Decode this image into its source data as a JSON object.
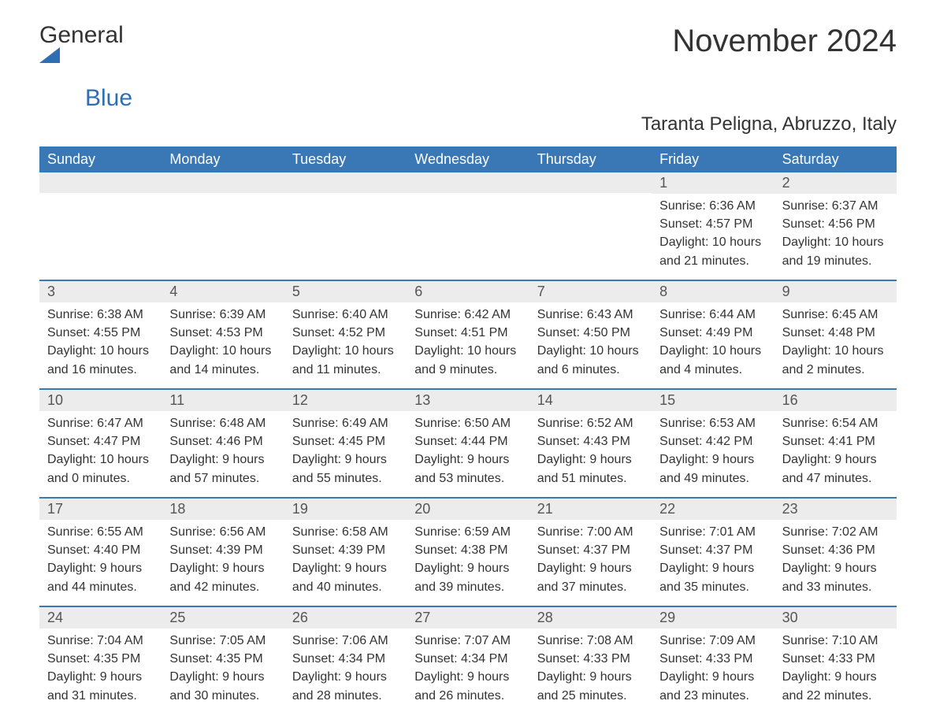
{
  "brand": {
    "text1": "General",
    "text2": "Blue"
  },
  "title": "November 2024",
  "subtitle": "Taranta Peligna, Abruzzo, Italy",
  "colors": {
    "header_bg": "#3a77b5",
    "header_text": "#ffffff",
    "row_divider": "#3a77b5",
    "daynum_bg": "#ececec",
    "body_text": "#333333",
    "brand_blue": "#2f6fb1"
  },
  "dayNames": [
    "Sunday",
    "Monday",
    "Tuesday",
    "Wednesday",
    "Thursday",
    "Friday",
    "Saturday"
  ],
  "weeks": [
    [
      {
        "day": "",
        "sunrise": "",
        "sunset": "",
        "daylight": ""
      },
      {
        "day": "",
        "sunrise": "",
        "sunset": "",
        "daylight": ""
      },
      {
        "day": "",
        "sunrise": "",
        "sunset": "",
        "daylight": ""
      },
      {
        "day": "",
        "sunrise": "",
        "sunset": "",
        "daylight": ""
      },
      {
        "day": "",
        "sunrise": "",
        "sunset": "",
        "daylight": ""
      },
      {
        "day": "1",
        "sunrise": "Sunrise: 6:36 AM",
        "sunset": "Sunset: 4:57 PM",
        "daylight": "Daylight: 10 hours and 21 minutes."
      },
      {
        "day": "2",
        "sunrise": "Sunrise: 6:37 AM",
        "sunset": "Sunset: 4:56 PM",
        "daylight": "Daylight: 10 hours and 19 minutes."
      }
    ],
    [
      {
        "day": "3",
        "sunrise": "Sunrise: 6:38 AM",
        "sunset": "Sunset: 4:55 PM",
        "daylight": "Daylight: 10 hours and 16 minutes."
      },
      {
        "day": "4",
        "sunrise": "Sunrise: 6:39 AM",
        "sunset": "Sunset: 4:53 PM",
        "daylight": "Daylight: 10 hours and 14 minutes."
      },
      {
        "day": "5",
        "sunrise": "Sunrise: 6:40 AM",
        "sunset": "Sunset: 4:52 PM",
        "daylight": "Daylight: 10 hours and 11 minutes."
      },
      {
        "day": "6",
        "sunrise": "Sunrise: 6:42 AM",
        "sunset": "Sunset: 4:51 PM",
        "daylight": "Daylight: 10 hours and 9 minutes."
      },
      {
        "day": "7",
        "sunrise": "Sunrise: 6:43 AM",
        "sunset": "Sunset: 4:50 PM",
        "daylight": "Daylight: 10 hours and 6 minutes."
      },
      {
        "day": "8",
        "sunrise": "Sunrise: 6:44 AM",
        "sunset": "Sunset: 4:49 PM",
        "daylight": "Daylight: 10 hours and 4 minutes."
      },
      {
        "day": "9",
        "sunrise": "Sunrise: 6:45 AM",
        "sunset": "Sunset: 4:48 PM",
        "daylight": "Daylight: 10 hours and 2 minutes."
      }
    ],
    [
      {
        "day": "10",
        "sunrise": "Sunrise: 6:47 AM",
        "sunset": "Sunset: 4:47 PM",
        "daylight": "Daylight: 10 hours and 0 minutes."
      },
      {
        "day": "11",
        "sunrise": "Sunrise: 6:48 AM",
        "sunset": "Sunset: 4:46 PM",
        "daylight": "Daylight: 9 hours and 57 minutes."
      },
      {
        "day": "12",
        "sunrise": "Sunrise: 6:49 AM",
        "sunset": "Sunset: 4:45 PM",
        "daylight": "Daylight: 9 hours and 55 minutes."
      },
      {
        "day": "13",
        "sunrise": "Sunrise: 6:50 AM",
        "sunset": "Sunset: 4:44 PM",
        "daylight": "Daylight: 9 hours and 53 minutes."
      },
      {
        "day": "14",
        "sunrise": "Sunrise: 6:52 AM",
        "sunset": "Sunset: 4:43 PM",
        "daylight": "Daylight: 9 hours and 51 minutes."
      },
      {
        "day": "15",
        "sunrise": "Sunrise: 6:53 AM",
        "sunset": "Sunset: 4:42 PM",
        "daylight": "Daylight: 9 hours and 49 minutes."
      },
      {
        "day": "16",
        "sunrise": "Sunrise: 6:54 AM",
        "sunset": "Sunset: 4:41 PM",
        "daylight": "Daylight: 9 hours and 47 minutes."
      }
    ],
    [
      {
        "day": "17",
        "sunrise": "Sunrise: 6:55 AM",
        "sunset": "Sunset: 4:40 PM",
        "daylight": "Daylight: 9 hours and 44 minutes."
      },
      {
        "day": "18",
        "sunrise": "Sunrise: 6:56 AM",
        "sunset": "Sunset: 4:39 PM",
        "daylight": "Daylight: 9 hours and 42 minutes."
      },
      {
        "day": "19",
        "sunrise": "Sunrise: 6:58 AM",
        "sunset": "Sunset: 4:39 PM",
        "daylight": "Daylight: 9 hours and 40 minutes."
      },
      {
        "day": "20",
        "sunrise": "Sunrise: 6:59 AM",
        "sunset": "Sunset: 4:38 PM",
        "daylight": "Daylight: 9 hours and 39 minutes."
      },
      {
        "day": "21",
        "sunrise": "Sunrise: 7:00 AM",
        "sunset": "Sunset: 4:37 PM",
        "daylight": "Daylight: 9 hours and 37 minutes."
      },
      {
        "day": "22",
        "sunrise": "Sunrise: 7:01 AM",
        "sunset": "Sunset: 4:37 PM",
        "daylight": "Daylight: 9 hours and 35 minutes."
      },
      {
        "day": "23",
        "sunrise": "Sunrise: 7:02 AM",
        "sunset": "Sunset: 4:36 PM",
        "daylight": "Daylight: 9 hours and 33 minutes."
      }
    ],
    [
      {
        "day": "24",
        "sunrise": "Sunrise: 7:04 AM",
        "sunset": "Sunset: 4:35 PM",
        "daylight": "Daylight: 9 hours and 31 minutes."
      },
      {
        "day": "25",
        "sunrise": "Sunrise: 7:05 AM",
        "sunset": "Sunset: 4:35 PM",
        "daylight": "Daylight: 9 hours and 30 minutes."
      },
      {
        "day": "26",
        "sunrise": "Sunrise: 7:06 AM",
        "sunset": "Sunset: 4:34 PM",
        "daylight": "Daylight: 9 hours and 28 minutes."
      },
      {
        "day": "27",
        "sunrise": "Sunrise: 7:07 AM",
        "sunset": "Sunset: 4:34 PM",
        "daylight": "Daylight: 9 hours and 26 minutes."
      },
      {
        "day": "28",
        "sunrise": "Sunrise: 7:08 AM",
        "sunset": "Sunset: 4:33 PM",
        "daylight": "Daylight: 9 hours and 25 minutes."
      },
      {
        "day": "29",
        "sunrise": "Sunrise: 7:09 AM",
        "sunset": "Sunset: 4:33 PM",
        "daylight": "Daylight: 9 hours and 23 minutes."
      },
      {
        "day": "30",
        "sunrise": "Sunrise: 7:10 AM",
        "sunset": "Sunset: 4:33 PM",
        "daylight": "Daylight: 9 hours and 22 minutes."
      }
    ]
  ]
}
